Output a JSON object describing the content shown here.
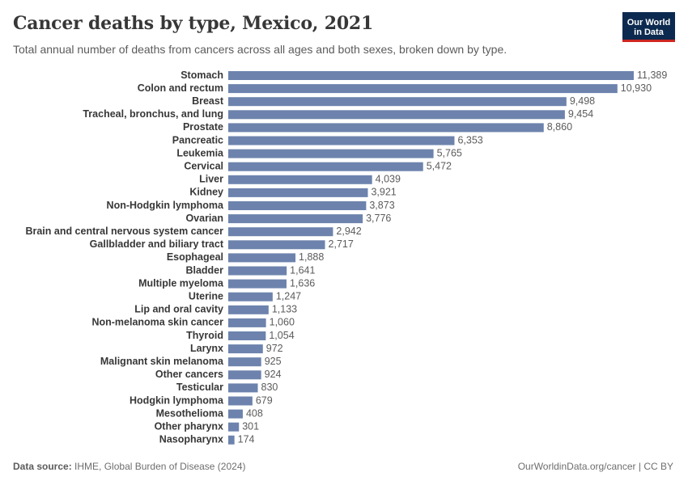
{
  "header": {
    "title": "Cancer deaths by type, Mexico, 2021",
    "subtitle": "Total annual number of deaths from cancers across all ages and both sexes, broken down by type.",
    "logo_line1": "Our World",
    "logo_line2": "in Data"
  },
  "footer": {
    "source_label": "Data source:",
    "source_text": "IHME, Global Burden of Disease (2024)",
    "link_text": "OurWorldinData.org/cancer",
    "license": "| CC BY"
  },
  "colors": {
    "bar": "#6d83ad",
    "label": "#373737",
    "value": "#5b5b5b"
  },
  "chart_data": {
    "type": "bar",
    "orientation": "horizontal",
    "categories": [
      "Stomach",
      "Colon and rectum",
      "Breast",
      "Tracheal, bronchus, and lung",
      "Prostate",
      "Pancreatic",
      "Leukemia",
      "Cervical",
      "Liver",
      "Kidney",
      "Non-Hodgkin lymphoma",
      "Ovarian",
      "Brain and central nervous system cancer",
      "Gallbladder and biliary tract",
      "Esophageal",
      "Bladder",
      "Multiple myeloma",
      "Uterine",
      "Lip and oral cavity",
      "Non-melanoma skin cancer",
      "Thyroid",
      "Larynx",
      "Malignant skin melanoma",
      "Other cancers",
      "Testicular",
      "Hodgkin lymphoma",
      "Mesothelioma",
      "Other pharynx",
      "Nasopharynx"
    ],
    "values": [
      11389,
      10930,
      9498,
      9454,
      8860,
      6353,
      5765,
      5472,
      4039,
      3921,
      3873,
      3776,
      2942,
      2717,
      1888,
      1641,
      1636,
      1247,
      1133,
      1060,
      1054,
      972,
      925,
      924,
      830,
      679,
      408,
      301,
      174
    ],
    "value_labels": [
      "11,389",
      "10,930",
      "9,498",
      "9,454",
      "8,860",
      "6,353",
      "5,765",
      "5,472",
      "4,039",
      "3,921",
      "3,873",
      "3,776",
      "2,942",
      "2,717",
      "1,888",
      "1,641",
      "1,636",
      "1,247",
      "1,133",
      "1,060",
      "1,054",
      "972",
      "925",
      "924",
      "830",
      "679",
      "408",
      "301",
      "174"
    ],
    "xlim": [
      0,
      11389
    ],
    "grid": false,
    "legend": "none"
  }
}
